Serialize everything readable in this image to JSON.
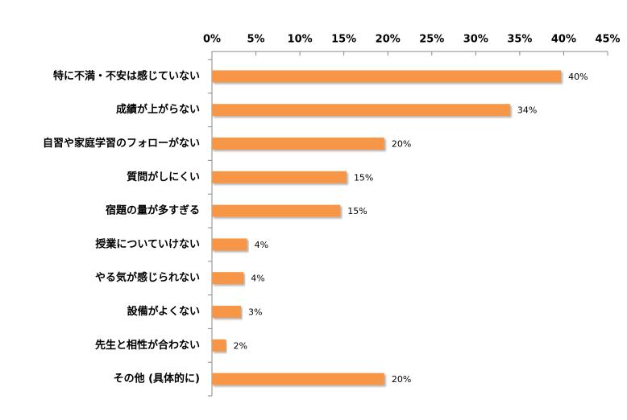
{
  "chart_data": {
    "type": "bar",
    "orientation": "horizontal",
    "categories": [
      "特に不満・不安は感じていない",
      "成績が上がらない",
      "自習や家庭学習のフォローがない",
      "質問がしにくい",
      "宿題の量が多すぎる",
      "授業についていけない",
      "やる気が感じられない",
      "設備がよくない",
      "先生と相性が合わない",
      "その他 (具体的に)"
    ],
    "values": [
      39.7,
      33.9,
      19.6,
      15.3,
      14.6,
      4.0,
      3.6,
      3.3,
      1.6,
      19.6
    ],
    "value_labels": [
      "40%",
      "34%",
      "20%",
      "15%",
      "15%",
      "4%",
      "4%",
      "3%",
      "2%",
      "20%"
    ],
    "color": "#f79646",
    "xlim": [
      0,
      45
    ],
    "xticks": [
      {
        "value": 0,
        "label": "0%"
      },
      {
        "value": 5,
        "label": "5%"
      },
      {
        "value": 10,
        "label": "10%"
      },
      {
        "value": 15,
        "label": "15%"
      },
      {
        "value": 20,
        "label": "20%"
      },
      {
        "value": 25,
        "label": "25%"
      },
      {
        "value": 30,
        "label": "30%"
      },
      {
        "value": 35,
        "label": "35%"
      },
      {
        "value": 40,
        "label": "40%"
      },
      {
        "value": 45,
        "label": "45%"
      }
    ],
    "grid": false
  }
}
